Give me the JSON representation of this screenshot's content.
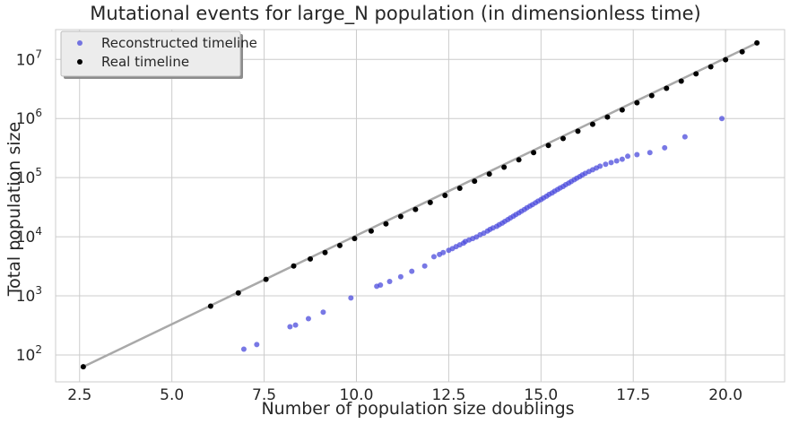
{
  "chart_data": {
    "type": "scatter",
    "title": "Mutational events for large_N population (in dimensionless time)",
    "xlabel": "Number of population size doublings",
    "ylabel": "Total population size",
    "xlim": [
      1.85,
      21.6
    ],
    "ylim": [
      35,
      32000000
    ],
    "yscale": "log",
    "grid": true,
    "legend_position": "top-left",
    "x_ticks": [
      "2.5",
      "5.0",
      "7.5",
      "10.0",
      "12.5",
      "15.0",
      "17.5",
      "20.0"
    ],
    "y_ticks": [
      {
        "base": "10",
        "exp": "2"
      },
      {
        "base": "10",
        "exp": "3"
      },
      {
        "base": "10",
        "exp": "4"
      },
      {
        "base": "10",
        "exp": "5"
      },
      {
        "base": "10",
        "exp": "6"
      },
      {
        "base": "10",
        "exp": "7"
      }
    ],
    "fit_line": {
      "x": [
        2.6,
        20.85
      ],
      "y": [
        63,
        19000000
      ],
      "color": "#a9a9a9"
    },
    "series": [
      {
        "name": "Reconstructed timeline",
        "color": "#4b4bdc",
        "x": [
          6.95,
          7.3,
          8.2,
          8.35,
          8.7,
          9.1,
          9.85,
          10.55,
          10.65,
          10.9,
          11.2,
          11.5,
          11.85,
          12.1,
          12.25,
          12.35,
          12.5,
          12.6,
          12.7,
          12.8,
          12.9,
          12.95,
          13.05,
          13.15,
          13.25,
          13.35,
          13.45,
          13.55,
          13.62,
          13.7,
          13.8,
          13.87,
          13.95,
          14.02,
          14.1,
          14.17,
          14.25,
          14.32,
          14.4,
          14.47,
          14.55,
          14.62,
          14.7,
          14.77,
          14.85,
          14.92,
          15.0,
          15.07,
          15.15,
          15.22,
          15.3,
          15.37,
          15.45,
          15.52,
          15.6,
          15.67,
          15.75,
          15.82,
          15.9,
          15.97,
          16.05,
          16.12,
          16.2,
          16.3,
          16.4,
          16.5,
          16.6,
          16.75,
          16.9,
          17.05,
          17.2,
          17.35,
          17.6,
          17.95,
          18.35,
          18.9,
          19.9
        ],
        "y": [
          125,
          150,
          300,
          320,
          410,
          530,
          920,
          1450,
          1520,
          1750,
          2100,
          2600,
          3200,
          4600,
          5000,
          5400,
          5900,
          6300,
          6800,
          7300,
          7800,
          8300,
          8800,
          9300,
          9900,
          10800,
          11500,
          12500,
          13300,
          14100,
          15000,
          16000,
          17000,
          18200,
          19500,
          20800,
          22200,
          23700,
          25300,
          27000,
          28900,
          31000,
          33000,
          35000,
          37500,
          40000,
          42500,
          45500,
          48500,
          52000,
          55000,
          59000,
          63000,
          67000,
          71000,
          76000,
          81000,
          86000,
          92000,
          98000,
          104000,
          111000,
          118000,
          127000,
          136000,
          146000,
          156000,
          168000,
          180000,
          192000,
          205000,
          230000,
          245000,
          265000,
          320000,
          490000,
          1000000
        ]
      },
      {
        "name": "Real timeline",
        "color": "#000000",
        "x": [
          2.6,
          6.05,
          6.8,
          7.55,
          8.3,
          8.75,
          9.15,
          9.55,
          9.95,
          10.4,
          10.8,
          11.2,
          11.6,
          12.0,
          12.4,
          12.8,
          13.2,
          13.6,
          14.0,
          14.4,
          14.8,
          15.2,
          15.6,
          16.0,
          16.4,
          16.8,
          17.2,
          17.6,
          18.0,
          18.4,
          18.8,
          19.2,
          19.6,
          20.0,
          20.45,
          20.85
        ],
        "y": [
          63,
          670,
          1120,
          1900,
          3200,
          4200,
          5400,
          7100,
          9300,
          12500,
          16500,
          22000,
          29000,
          38000,
          50000,
          66000,
          87000,
          115000,
          150000,
          200000,
          265000,
          350000,
          460000,
          610000,
          800000,
          1060000,
          1400000,
          1850000,
          2450000,
          3250000,
          4300000,
          5700000,
          7500000,
          9900000,
          13500000,
          19000000
        ]
      }
    ]
  }
}
